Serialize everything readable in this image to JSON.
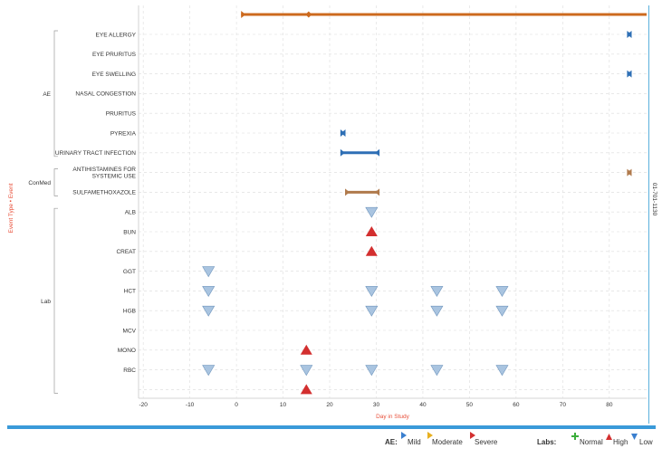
{
  "chart_data": {
    "type": "scatter",
    "xlabel": "Day in Study",
    "ylabel": "Event Type • Event",
    "right_label": "01-701-1130",
    "xlim": [
      -21,
      88
    ],
    "x_ticks": [
      -20,
      -10,
      0,
      10,
      20,
      30,
      40,
      50,
      60,
      70,
      80
    ],
    "grid": true,
    "study_span": {
      "start": 1,
      "end": 88,
      "marker": 15.5,
      "color": "#cc6a1e"
    },
    "groups": [
      {
        "name": "AE",
        "rows": [
          "EYE ALLERGY",
          "EYE PRURITUS",
          "EYE SWELLING",
          "NASAL CONGESTION",
          "PRURITUS",
          "PYREXIA",
          "URINARY TRACT INFECTION"
        ]
      },
      {
        "name": "ConMed",
        "rows": [
          "ANTIHISTAMINES FOR\nSYSTEMIC USE",
          "SULFAMETHOXAZOLE"
        ]
      },
      {
        "name": "Lab",
        "rows": [
          "ALB",
          "BUN",
          "CREAT",
          "GGT",
          "HCT",
          "HGB",
          "MCV",
          "MONO",
          "RBC",
          ""
        ]
      }
    ],
    "intervals": [
      {
        "row": "EYE ALLERGY",
        "start": 84,
        "end": 84.6,
        "severity": "Mild",
        "color": "#2e6fb5"
      },
      {
        "row": "EYE SWELLING",
        "start": 84,
        "end": 84.6,
        "severity": "Mild",
        "color": "#2e6fb5"
      },
      {
        "row": "PYREXIA",
        "start": 22.5,
        "end": 23.2,
        "severity": "Mild",
        "color": "#2e6fb5"
      },
      {
        "row": "URINARY TRACT INFECTION",
        "start": 22.5,
        "end": 30.5,
        "severity": "Mild",
        "color": "#2e6fb5"
      },
      {
        "row": "ANTIHISTAMINES FOR\nSYSTEMIC USE",
        "start": 84,
        "end": 84.6,
        "color": "#b07a4c"
      },
      {
        "row": "SULFAMETHOXAZOLE",
        "start": 23.5,
        "end": 30.5,
        "color": "#b07a4c"
      }
    ],
    "labs": [
      {
        "row": "ALB",
        "day": 29,
        "result": "Low"
      },
      {
        "row": "BUN",
        "day": 29,
        "result": "High"
      },
      {
        "row": "CREAT",
        "day": 29,
        "result": "High"
      },
      {
        "row": "GGT",
        "day": -6,
        "result": "Low"
      },
      {
        "row": "HCT",
        "day": -6,
        "result": "Low"
      },
      {
        "row": "HCT",
        "day": 29,
        "result": "Low"
      },
      {
        "row": "HCT",
        "day": 43,
        "result": "Low"
      },
      {
        "row": "HCT",
        "day": 57,
        "result": "Low"
      },
      {
        "row": "HGB",
        "day": -6,
        "result": "Low"
      },
      {
        "row": "HGB",
        "day": 29,
        "result": "Low"
      },
      {
        "row": "HGB",
        "day": 43,
        "result": "Low"
      },
      {
        "row": "HGB",
        "day": 57,
        "result": "Low"
      },
      {
        "row": "MONO",
        "day": 15,
        "result": "High"
      },
      {
        "row": "RBC",
        "day": -6,
        "result": "Low"
      },
      {
        "row": "RBC",
        "day": 15,
        "result": "Low"
      },
      {
        "row": "RBC",
        "day": 29,
        "result": "Low"
      },
      {
        "row": "RBC",
        "day": 43,
        "result": "Low"
      },
      {
        "row": "RBC",
        "day": 57,
        "result": "Low"
      },
      {
        "row": "",
        "day": 15,
        "result": "High"
      }
    ],
    "colors": {
      "high": "#d32f2f",
      "low": "#a9c4e0",
      "low_stroke": "#6f95bd",
      "normal": "#3cae3c",
      "axis_label": "#e8503a",
      "grid": "#dcdcdc",
      "group_bracket": "#9a9a9a"
    }
  },
  "legend": {
    "ae_heading": "AE:",
    "ae_items": [
      {
        "label": "Mild",
        "color": "#3a7fcf"
      },
      {
        "label": "Moderate",
        "color": "#e8b020"
      },
      {
        "label": "Severe",
        "color": "#d32f2f"
      }
    ],
    "labs_heading": "Labs:",
    "labs_items": [
      {
        "label": "Normal",
        "color": "#3cae3c",
        "icon": "plus-icon"
      },
      {
        "label": "High",
        "color": "#d32f2f",
        "icon": "triangle-up-icon"
      },
      {
        "label": "Low",
        "color": "#3a7fcf",
        "icon": "triangle-down-icon"
      }
    ]
  }
}
